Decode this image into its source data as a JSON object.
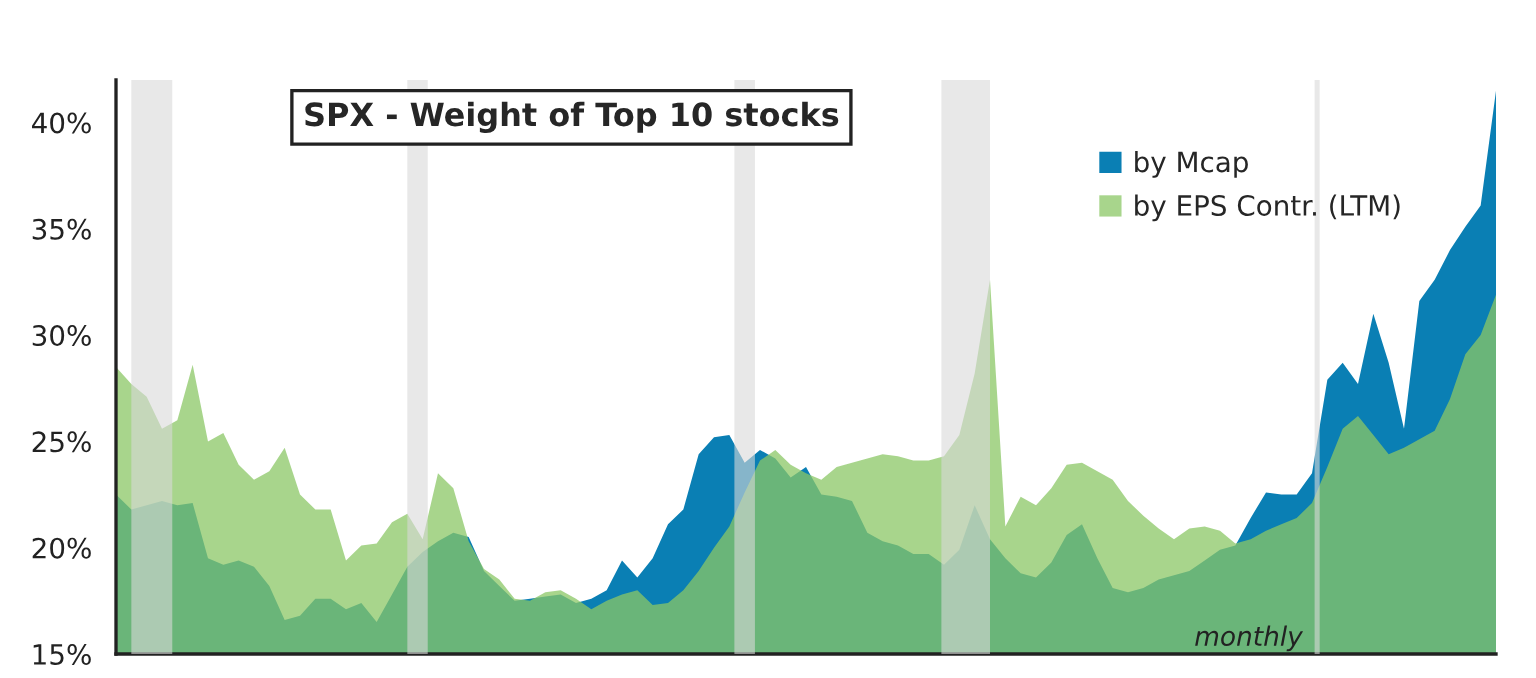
{
  "chart_data": {
    "type": "area",
    "title": "SPX - Weight of Top 10 stocks",
    "categories": [
      null,
      null,
      null,
      null,
      null,
      null,
      null,
      null,
      null,
      null,
      null,
      null,
      null,
      null,
      null,
      null,
      null,
      null,
      null,
      null,
      null,
      null,
      null,
      null,
      null,
      null,
      null,
      null,
      null,
      null,
      null,
      null,
      null,
      null,
      null,
      null,
      null,
      null,
      null,
      null,
      null,
      null,
      null,
      null,
      null,
      null,
      null,
      null,
      null,
      null,
      null,
      null,
      null,
      null,
      null,
      null,
      null,
      null,
      null,
      null,
      null,
      null,
      null,
      null,
      null,
      null,
      null,
      null,
      null,
      null,
      null,
      null,
      null,
      null,
      null,
      null,
      null,
      null,
      null,
      null,
      null,
      null,
      null,
      null,
      null,
      null,
      null,
      null,
      null,
      null,
      null
    ],
    "series": [
      {
        "name": "by Mcap",
        "color": "#0a7fb4",
        "values": [
          22.5,
          21.8,
          22.0,
          22.2,
          22.0,
          22.1,
          19.5,
          19.2,
          19.4,
          19.1,
          18.2,
          16.6,
          16.8,
          17.6,
          17.6,
          17.1,
          17.4,
          16.5,
          17.8,
          19.1,
          19.8,
          20.3,
          20.7,
          20.5,
          18.9,
          18.2,
          17.5,
          17.6,
          17.7,
          17.8,
          17.4,
          17.6,
          18.0,
          19.4,
          18.6,
          19.5,
          21.1,
          21.8,
          24.4,
          25.2,
          25.3,
          24.0,
          24.6,
          24.2,
          23.3,
          23.8,
          22.5,
          22.4,
          22.2,
          20.7,
          20.3,
          20.1,
          19.7,
          19.7,
          19.2,
          19.9,
          22.0,
          20.4,
          19.5,
          18.8,
          18.6,
          19.3,
          20.6,
          21.1,
          19.5,
          18.1,
          17.9,
          18.1,
          18.5,
          18.7,
          18.9,
          19.4,
          19.9,
          20.1,
          21.4,
          22.6,
          22.5,
          22.5,
          23.5,
          27.9,
          28.7,
          27.7,
          31.0,
          28.7,
          25.6,
          31.6,
          32.6,
          34.0,
          35.1,
          36.1,
          41.5
        ]
      },
      {
        "name": "by EPS Contr. (LTM)",
        "color": "#a8d58c",
        "values": [
          28.5,
          27.7,
          27.1,
          25.6,
          26.0,
          28.6,
          25.0,
          25.4,
          23.9,
          23.2,
          23.6,
          24.7,
          22.5,
          21.8,
          21.8,
          19.4,
          20.1,
          20.2,
          21.2,
          21.6,
          20.4,
          23.5,
          22.8,
          20.3,
          19.0,
          18.5,
          17.6,
          17.5,
          17.9,
          18.0,
          17.6,
          17.1,
          17.5,
          17.8,
          18.0,
          17.3,
          17.4,
          18.0,
          18.9,
          20.0,
          21.0,
          22.6,
          24.1,
          24.6,
          23.9,
          23.5,
          23.2,
          23.8,
          24.0,
          24.2,
          24.4,
          24.3,
          24.1,
          24.1,
          24.3,
          25.3,
          28.2,
          32.6,
          21.0,
          22.4,
          22.0,
          22.8,
          23.9,
          24.0,
          23.6,
          23.2,
          22.2,
          21.5,
          20.9,
          20.4,
          20.9,
          21.0,
          20.8,
          20.2,
          20.4,
          20.8,
          21.1,
          21.4,
          22.1,
          23.8,
          25.6,
          26.2,
          25.3,
          24.4,
          24.7,
          25.1,
          25.5,
          27.0,
          29.1,
          30.0,
          31.9
        ]
      }
    ],
    "ylim": [
      15,
      42
    ],
    "yticks": [
      {
        "value": 15,
        "label": "15%"
      },
      {
        "value": 20,
        "label": "20%"
      },
      {
        "value": 25,
        "label": "25%"
      },
      {
        "value": 30,
        "label": "30%"
      },
      {
        "value": 35,
        "label": "35%"
      },
      {
        "value": 40,
        "label": "40%"
      }
    ],
    "annotations": [
      "monthly"
    ],
    "legend": "top right",
    "grid": false
  }
}
